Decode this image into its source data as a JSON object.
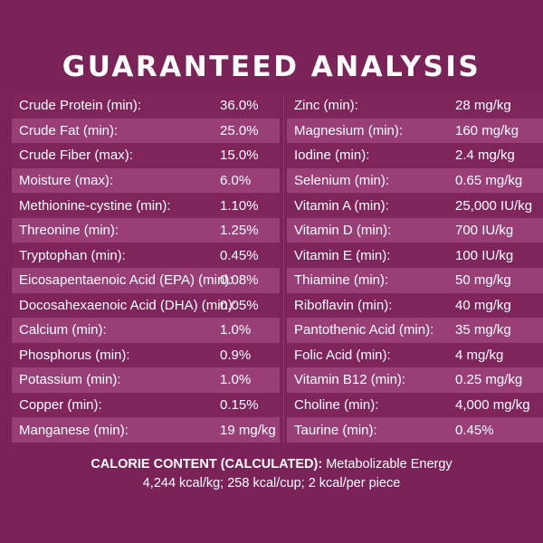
{
  "title": "GUARANTEED ANALYSIS",
  "left_rows": [
    {
      "name": "Crude Protein (min):",
      "value": "36.0%"
    },
    {
      "name": "Crude Fat (min):",
      "value": "25.0%"
    },
    {
      "name": "Crude Fiber (max):",
      "value": "15.0%"
    },
    {
      "name": "Moisture (max):",
      "value": "6.0%"
    },
    {
      "name": "Methionine-cystine (min):",
      "value": "1.10%"
    },
    {
      "name": "Threonine (min):",
      "value": "1.25%"
    },
    {
      "name": "Tryptophan (min):",
      "value": "0.45%"
    },
    {
      "name": "Eicosapentaenoic Acid (EPA) (min):",
      "value": "0.08%"
    },
    {
      "name": "Docosahexaenoic Acid (DHA) (min):",
      "value": "0.05%"
    },
    {
      "name": "Calcium (min):",
      "value": "1.0%"
    },
    {
      "name": "Phosphorus (min):",
      "value": "0.9%"
    },
    {
      "name": "Potassium (min):",
      "value": "1.0%"
    },
    {
      "name": "Copper (min):",
      "value": "0.15%"
    },
    {
      "name": "Manganese (min):",
      "value": "19 mg/kg"
    }
  ],
  "right_rows": [
    {
      "name": "Zinc (min):",
      "value": "28 mg/kg"
    },
    {
      "name": "Magnesium (min):",
      "value": "160 mg/kg"
    },
    {
      "name": "Iodine (min):",
      "value": "2.4 mg/kg"
    },
    {
      "name": "Selenium  (min):",
      "value": "0.65 mg/kg"
    },
    {
      "name": "Vitamin A (min):",
      "value": "25,000 IU/kg"
    },
    {
      "name": "Vitamin D (min):",
      "value": "700 IU/kg"
    },
    {
      "name": "Vitamin E (min):",
      "value": "100 IU/kg"
    },
    {
      "name": "Thiamine (min):",
      "value": "50 mg/kg"
    },
    {
      "name": "Riboflavin (min):",
      "value": "40 mg/kg"
    },
    {
      "name": "Pantothenic Acid (min):",
      "value": "35 mg/kg"
    },
    {
      "name": "Folic Acid (min):",
      "value": "4 mg/kg"
    },
    {
      "name": "Vitamin B12 (min):",
      "value": "0.25 mg/kg"
    },
    {
      "name": "Choline (min):",
      "value": "4,000 mg/kg"
    },
    {
      "name": "Taurine (min):",
      "value": "0.45%"
    }
  ],
  "calorie": {
    "label": "CALORIE CONTENT (CALCULATED):",
    "line1": "Metabolizable Energy",
    "line2": "4,244 kcal/kg; 258 kcal/cup; 2 kcal/per piece"
  },
  "colors": {
    "background": "#7b2259",
    "row_dark": "#7f255b",
    "row_light": "#993e77",
    "text": "#ffffff"
  }
}
